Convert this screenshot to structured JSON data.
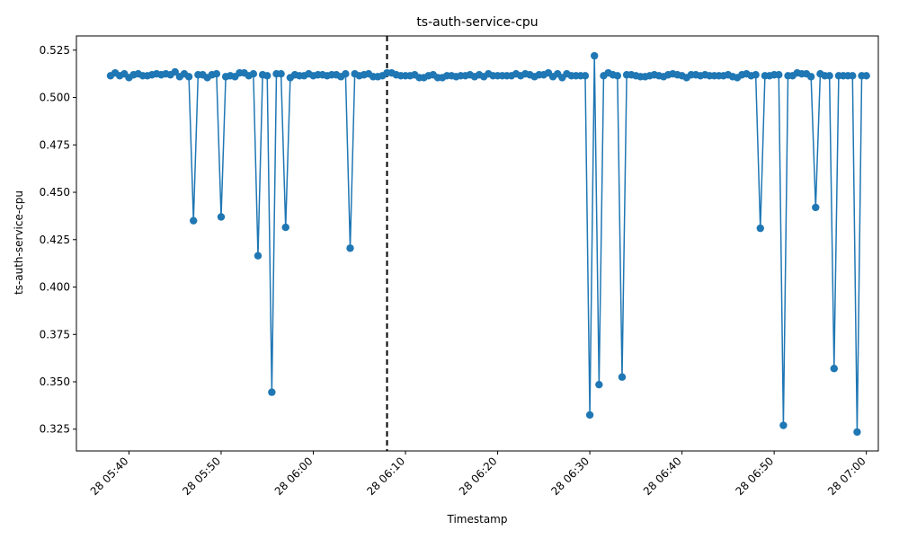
{
  "chart_data": {
    "type": "line",
    "title": "ts-auth-service-cpu",
    "xlabel": "Timestamp",
    "ylabel": "ts-auth-service-cpu",
    "x_tick_labels": [
      "28 05:40",
      "28 05:50",
      "28 06:00",
      "28 06:10",
      "28 06:20",
      "28 06:30",
      "28 06:40",
      "28 06:50",
      "28 07:00"
    ],
    "x_tick_minutes": [
      340,
      350,
      360,
      370,
      380,
      390,
      400,
      410,
      420
    ],
    "y_tick_labels": [
      "0.325",
      "0.350",
      "0.375",
      "0.400",
      "0.425",
      "0.450",
      "0.475",
      "0.500",
      "0.525"
    ],
    "y_tick_values": [
      0.325,
      0.35,
      0.375,
      0.4,
      0.425,
      0.45,
      0.475,
      0.5,
      0.525
    ],
    "xlim_minutes": [
      334.3,
      421.3
    ],
    "ylim": [
      0.3135,
      0.5325
    ],
    "marker": "circle",
    "line_color": "#1f77b4",
    "divider_minute": 368.0,
    "divider_style": "dashed-black",
    "grid": false,
    "series": [
      {
        "x_start_minute": 338.0,
        "x_step_minutes": 0.5,
        "values": [
          0.5115,
          0.513,
          0.5115,
          0.5125,
          0.5105,
          0.512,
          0.5125,
          0.5115,
          0.5115,
          0.512,
          0.5125,
          0.512,
          0.5125,
          0.512,
          0.5135,
          0.511,
          0.5125,
          0.511,
          0.435,
          0.512,
          0.512,
          0.5105,
          0.512,
          0.5125,
          0.437,
          0.511,
          0.5115,
          0.511,
          0.513,
          0.513,
          0.5115,
          0.5125,
          0.4165,
          0.512,
          0.5115,
          0.3445,
          0.5125,
          0.5125,
          0.4315,
          0.5105,
          0.512,
          0.5115,
          0.5115,
          0.5125,
          0.5115,
          0.512,
          0.512,
          0.5115,
          0.512,
          0.512,
          0.511,
          0.5125,
          0.4205,
          0.5125,
          0.5115,
          0.512,
          0.5125,
          0.511,
          0.511,
          0.5115,
          0.513,
          0.513,
          0.512,
          0.5115,
          0.5115,
          0.5115,
          0.512,
          0.5105,
          0.5105,
          0.5115,
          0.512,
          0.5105,
          0.5105,
          0.5115,
          0.5115,
          0.511,
          0.5115,
          0.5115,
          0.512,
          0.511,
          0.512,
          0.511,
          0.5125,
          0.5115,
          0.5115,
          0.5115,
          0.5115,
          0.5115,
          0.5125,
          0.5115,
          0.5125,
          0.512,
          0.511,
          0.512,
          0.512,
          0.513,
          0.511,
          0.5125,
          0.5105,
          0.5125,
          0.5115,
          0.5115,
          0.5115,
          0.5115,
          0.3325,
          0.522,
          0.3485,
          0.5115,
          0.513,
          0.512,
          0.5115,
          0.3525,
          0.512,
          0.512,
          0.5115,
          0.511,
          0.511,
          0.5115,
          0.512,
          0.5115,
          0.511,
          0.512,
          0.5125,
          0.512,
          0.5115,
          0.5105,
          0.512,
          0.512,
          0.5115,
          0.512,
          0.5115,
          0.5115,
          0.5115,
          0.5115,
          0.512,
          0.511,
          0.5105,
          0.512,
          0.5125,
          0.5115,
          0.512,
          0.431,
          0.5115,
          0.5115,
          0.512,
          0.512,
          0.327,
          0.5115,
          0.5115,
          0.513,
          0.5125,
          0.5125,
          0.511,
          0.442,
          0.5125,
          0.5115,
          0.5115,
          0.357,
          0.5115,
          0.5115,
          0.5115,
          0.5115,
          0.3235,
          0.5115,
          0.5115
        ]
      }
    ]
  }
}
